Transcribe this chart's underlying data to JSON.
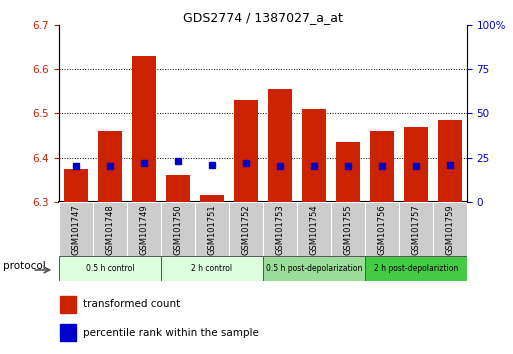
{
  "title": "GDS2774 / 1387027_a_at",
  "samples": [
    "GSM101747",
    "GSM101748",
    "GSM101749",
    "GSM101750",
    "GSM101751",
    "GSM101752",
    "GSM101753",
    "GSM101754",
    "GSM101755",
    "GSM101756",
    "GSM101757",
    "GSM101759"
  ],
  "transformed_count": [
    6.375,
    6.46,
    6.63,
    6.36,
    6.315,
    6.53,
    6.555,
    6.51,
    6.435,
    6.46,
    6.47,
    6.485
  ],
  "percentile_rank": [
    20,
    20,
    22,
    23,
    21,
    22,
    20,
    20,
    20,
    20,
    20,
    21
  ],
  "ylim_left": [
    6.3,
    6.7
  ],
  "ylim_right": [
    0,
    100
  ],
  "yticks_left": [
    6.3,
    6.4,
    6.5,
    6.6,
    6.7
  ],
  "yticks_right": [
    0,
    25,
    50,
    75,
    100
  ],
  "ytick_labels_right": [
    "0",
    "25",
    "50",
    "75",
    "100%"
  ],
  "grid_values": [
    6.4,
    6.5,
    6.6
  ],
  "bar_color": "#cc2200",
  "marker_color": "#0000cc",
  "bar_width": 0.7,
  "groups": [
    {
      "label": "0.5 h control",
      "start": 0,
      "end": 2,
      "color": "#ddffdd"
    },
    {
      "label": "2 h control",
      "start": 3,
      "end": 5,
      "color": "#ddffdd"
    },
    {
      "label": "0.5 h post-depolarization",
      "start": 6,
      "end": 8,
      "color": "#99dd99"
    },
    {
      "label": "2 h post-depolariztion",
      "start": 9,
      "end": 11,
      "color": "#44cc44"
    }
  ],
  "protocol_label": "protocol",
  "legend_items": [
    {
      "label": "transformed count",
      "color": "#cc2200"
    },
    {
      "label": "percentile rank within the sample",
      "color": "#0000cc"
    }
  ],
  "axis_label_color_left": "#cc2200",
  "axis_label_color_right": "#0000cc",
  "tick_label_bg": "#cccccc"
}
